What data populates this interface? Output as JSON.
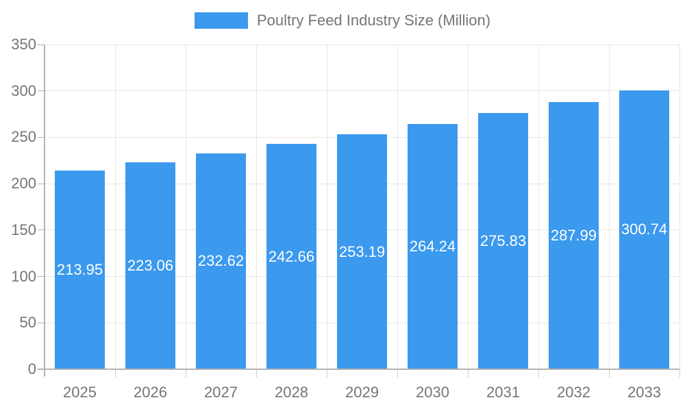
{
  "chart_data": {
    "type": "bar",
    "title": "Poultry Feed Industry Size (Million)",
    "categories": [
      "2025",
      "2026",
      "2027",
      "2028",
      "2029",
      "2030",
      "2031",
      "2032",
      "2033"
    ],
    "values": [
      213.95,
      223.06,
      232.62,
      242.66,
      253.19,
      264.24,
      275.83,
      287.99,
      300.74
    ],
    "value_labels": [
      "213.95",
      "223.06",
      "232.62",
      "242.66",
      "253.19",
      "264.24",
      "275.83",
      "287.99",
      "300.74"
    ],
    "xlabel": "",
    "ylabel": "",
    "ylim": [
      0,
      350
    ],
    "yticks": [
      0,
      50,
      100,
      150,
      200,
      250,
      300,
      350
    ],
    "grid": "on",
    "legend_position": "top-center",
    "colors": {
      "bar": "#3b99ee",
      "bar_value_text": "#ffffff",
      "axis_text": "#757575",
      "gridline": "#e6e6e6",
      "axis_line": "#b3b3b3",
      "minor_tick": "#cccccc"
    }
  }
}
